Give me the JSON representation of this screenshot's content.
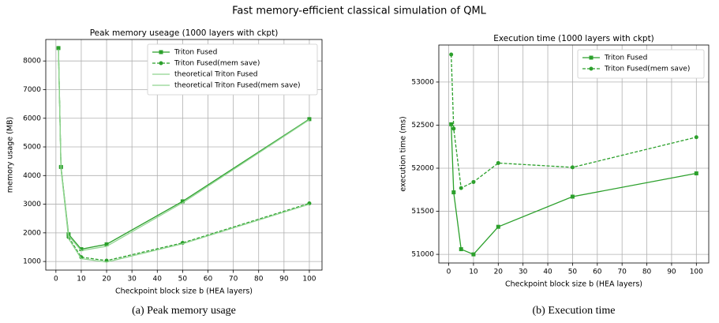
{
  "title": "Fast memory-efficient classical simulation of QML",
  "chart_data": [
    {
      "type": "line",
      "title": "Peak memory useage (1000 layers with ckpt)",
      "caption": "(a) Peak memory usage",
      "xlabel": "Checkpoint block size b (HEA layers)",
      "ylabel": "memory usage (MB)",
      "x": [
        1,
        2,
        5,
        10,
        20,
        50,
        100
      ],
      "series": [
        {
          "name": "Triton Fused",
          "color": "#2ca02c",
          "dash": false,
          "marker": "square",
          "values": [
            8450,
            4300,
            1950,
            1430,
            1600,
            3100,
            5970
          ]
        },
        {
          "name": "Triton Fused(mem save)",
          "color": "#2ca02c",
          "dash": true,
          "marker": "circle",
          "values": [
            8450,
            4300,
            1850,
            1150,
            1030,
            1650,
            3030
          ]
        },
        {
          "name": "theoretical Triton Fused",
          "color": "#8fd48f",
          "dash": false,
          "marker": "none",
          "values": [
            8400,
            4250,
            1900,
            1380,
            1530,
            3050,
            5950
          ]
        },
        {
          "name": "theoretical Triton Fused(mem save)",
          "color": "#8fd48f",
          "dash": false,
          "marker": "none",
          "values": [
            8400,
            4250,
            1800,
            1100,
            980,
            1620,
            3000
          ]
        }
      ],
      "xlim": [
        -4,
        105
      ],
      "xticks": [
        0,
        10,
        20,
        30,
        40,
        50,
        60,
        70,
        80,
        90,
        100
      ],
      "ylim": [
        700,
        8750
      ],
      "yticks": [
        1000,
        2000,
        3000,
        4000,
        5000,
        6000,
        7000,
        8000
      ],
      "grid": true,
      "legend": "upper-right"
    },
    {
      "type": "line",
      "title": "Execution time (1000 layers with ckpt)",
      "caption": "(b) Execution time",
      "xlabel": "Checkpoint block size b (HEA layers)",
      "ylabel": "execution time (ms)",
      "x": [
        1,
        2,
        5,
        10,
        20,
        50,
        100
      ],
      "series": [
        {
          "name": "Triton Fused",
          "color": "#2ca02c",
          "dash": false,
          "marker": "square",
          "values": [
            52510,
            51720,
            51060,
            51000,
            51320,
            51670,
            51940
          ]
        },
        {
          "name": "Triton Fused(mem save)",
          "color": "#2ca02c",
          "dash": true,
          "marker": "circle",
          "values": [
            53320,
            52460,
            51770,
            51840,
            52060,
            52010,
            52360
          ]
        }
      ],
      "xlim": [
        -4,
        105
      ],
      "xticks": [
        0,
        10,
        20,
        30,
        40,
        50,
        60,
        70,
        80,
        90,
        100
      ],
      "ylim": [
        50900,
        53430
      ],
      "yticks": [
        51000,
        51500,
        52000,
        52500,
        53000
      ],
      "grid": true,
      "legend": "upper-right"
    }
  ]
}
